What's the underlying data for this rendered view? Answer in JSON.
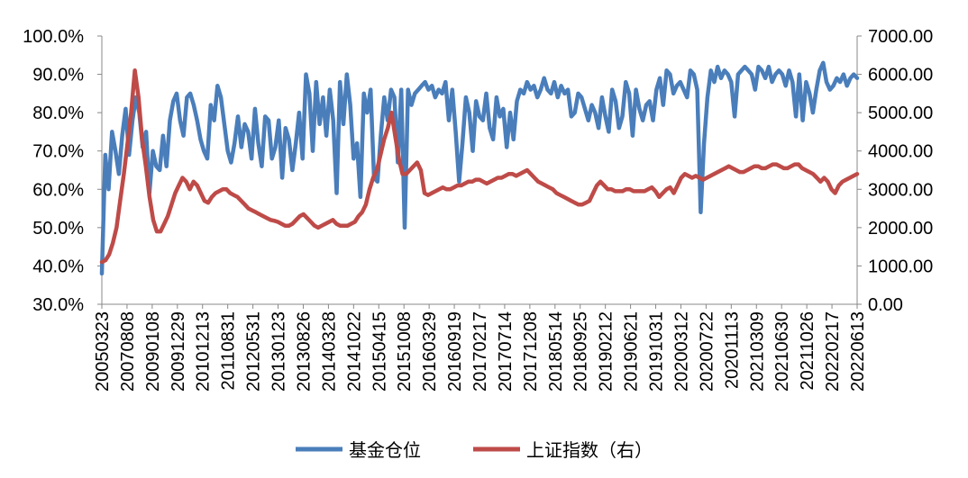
{
  "chart_data": {
    "type": "line",
    "dual_axis": true,
    "x_ticks": [
      "20050323",
      "20070808",
      "20090108",
      "20091229",
      "20101213",
      "20110831",
      "20120531",
      "20130123",
      "20130826",
      "20140328",
      "20141022",
      "20150415",
      "20151008",
      "20160329",
      "20160919",
      "20170217",
      "20170714",
      "20171208",
      "20180514",
      "20180925",
      "20190212",
      "20190621",
      "20191031",
      "20200312",
      "20200722",
      "20201113",
      "20210309",
      "20210630",
      "20211026",
      "20220217",
      "20220613"
    ],
    "y_left": {
      "ticks": [
        "100.0%",
        "90.0%",
        "80.0%",
        "70.0%",
        "60.0%",
        "50.0%",
        "40.0%",
        "30.0%"
      ],
      "range": [
        0.3,
        1.0
      ],
      "unit": "%"
    },
    "y_right": {
      "ticks": [
        "7000.00",
        "6000.00",
        "5000.00",
        "4000.00",
        "3000.00",
        "2000.00",
        "1000.00",
        "0.00"
      ],
      "range": [
        0,
        7000
      ]
    },
    "grid": false,
    "legend_position": "bottom",
    "series": [
      {
        "name": "基金仓位",
        "axis": "left",
        "color": "#4a7ebb",
        "values": [
          0.38,
          0.69,
          0.6,
          0.75,
          0.7,
          0.64,
          0.74,
          0.81,
          0.69,
          0.78,
          0.84,
          0.8,
          0.71,
          0.75,
          0.59,
          0.7,
          0.66,
          0.65,
          0.74,
          0.66,
          0.78,
          0.83,
          0.85,
          0.78,
          0.74,
          0.84,
          0.85,
          0.82,
          0.78,
          0.73,
          0.7,
          0.68,
          0.82,
          0.78,
          0.87,
          0.84,
          0.77,
          0.7,
          0.67,
          0.72,
          0.79,
          0.71,
          0.77,
          0.75,
          0.68,
          0.81,
          0.72,
          0.66,
          0.79,
          0.78,
          0.68,
          0.71,
          0.78,
          0.63,
          0.76,
          0.73,
          0.65,
          0.72,
          0.8,
          0.68,
          0.9,
          0.85,
          0.7,
          0.88,
          0.77,
          0.84,
          0.74,
          0.86,
          0.78,
          0.59,
          0.88,
          0.77,
          0.9,
          0.82,
          0.68,
          0.72,
          0.58,
          0.85,
          0.8,
          0.86,
          0.63,
          0.62,
          0.74,
          0.84,
          0.78,
          0.86,
          0.84,
          0.67,
          0.86,
          0.5,
          0.86,
          0.82,
          0.85,
          0.86,
          0.87,
          0.88,
          0.86,
          0.87,
          0.84,
          0.86,
          0.85,
          0.88,
          0.78,
          0.86,
          0.75,
          0.62,
          0.72,
          0.84,
          0.8,
          0.7,
          0.83,
          0.79,
          0.78,
          0.85,
          0.76,
          0.73,
          0.84,
          0.79,
          0.81,
          0.71,
          0.8,
          0.73,
          0.83,
          0.86,
          0.85,
          0.88,
          0.86,
          0.87,
          0.84,
          0.86,
          0.89,
          0.86,
          0.85,
          0.88,
          0.84,
          0.87,
          0.85,
          0.86,
          0.79,
          0.8,
          0.85,
          0.84,
          0.81,
          0.78,
          0.82,
          0.8,
          0.76,
          0.84,
          0.79,
          0.75,
          0.86,
          0.83,
          0.76,
          0.79,
          0.88,
          0.85,
          0.74,
          0.86,
          0.81,
          0.78,
          0.82,
          0.83,
          0.78,
          0.86,
          0.89,
          0.82,
          0.91,
          0.9,
          0.85,
          0.87,
          0.88,
          0.86,
          0.84,
          0.91,
          0.9,
          0.86,
          0.54,
          0.72,
          0.84,
          0.91,
          0.88,
          0.92,
          0.89,
          0.91,
          0.9,
          0.88,
          0.79,
          0.9,
          0.91,
          0.92,
          0.91,
          0.9,
          0.86,
          0.92,
          0.91,
          0.89,
          0.92,
          0.88,
          0.9,
          0.91,
          0.9,
          0.87,
          0.91,
          0.88,
          0.79,
          0.9,
          0.78,
          0.88,
          0.85,
          0.8,
          0.86,
          0.91,
          0.93,
          0.88,
          0.86,
          0.87,
          0.89,
          0.88,
          0.9,
          0.87,
          0.89,
          0.9,
          0.89
        ]
      },
      {
        "name": "上证指数（右）",
        "axis": "right",
        "color": "#be4b48",
        "values": [
          1100,
          1150,
          1300,
          1600,
          2000,
          2700,
          3400,
          4200,
          5000,
          6100,
          5400,
          4300,
          3600,
          2800,
          2200,
          1900,
          1900,
          2100,
          2300,
          2600,
          2900,
          3100,
          3300,
          3200,
          3000,
          3200,
          3100,
          2900,
          2700,
          2650,
          2800,
          2900,
          2950,
          3000,
          3000,
          2900,
          2850,
          2800,
          2700,
          2600,
          2500,
          2450,
          2400,
          2350,
          2300,
          2250,
          2200,
          2180,
          2150,
          2100,
          2050,
          2050,
          2100,
          2200,
          2300,
          2350,
          2250,
          2150,
          2050,
          2000,
          2050,
          2100,
          2150,
          2200,
          2100,
          2050,
          2050,
          2050,
          2100,
          2150,
          2300,
          2400,
          2600,
          3000,
          3300,
          3500,
          3900,
          4300,
          4600,
          5000,
          4400,
          3800,
          3400,
          3400,
          3500,
          3600,
          3700,
          3500,
          2900,
          2850,
          2900,
          2950,
          3000,
          3050,
          3000,
          3000,
          3050,
          3100,
          3100,
          3150,
          3200,
          3200,
          3250,
          3250,
          3200,
          3150,
          3200,
          3250,
          3300,
          3300,
          3350,
          3400,
          3400,
          3350,
          3400,
          3450,
          3500,
          3400,
          3300,
          3200,
          3150,
          3100,
          3050,
          3000,
          2900,
          2850,
          2800,
          2750,
          2700,
          2650,
          2600,
          2600,
          2650,
          2700,
          2900,
          3100,
          3200,
          3100,
          3000,
          3000,
          2950,
          2950,
          2950,
          3000,
          3000,
          2950,
          2950,
          2950,
          2950,
          3000,
          3050,
          2950,
          2800,
          2900,
          3000,
          3050,
          2900,
          3100,
          3300,
          3400,
          3350,
          3300,
          3350,
          3300,
          3250,
          3300,
          3350,
          3400,
          3450,
          3500,
          3550,
          3600,
          3550,
          3500,
          3450,
          3450,
          3500,
          3550,
          3600,
          3600,
          3550,
          3550,
          3600,
          3650,
          3650,
          3600,
          3550,
          3550,
          3600,
          3650,
          3650,
          3550,
          3500,
          3450,
          3400,
          3300,
          3200,
          3300,
          3200,
          3000,
          2900,
          3100,
          3200,
          3250,
          3300,
          3350,
          3400
        ]
      }
    ]
  },
  "legend": {
    "items": [
      {
        "label": "基金仓位",
        "color": "#4a7ebb"
      },
      {
        "label": "上证指数（右）",
        "color": "#be4b48"
      }
    ]
  }
}
